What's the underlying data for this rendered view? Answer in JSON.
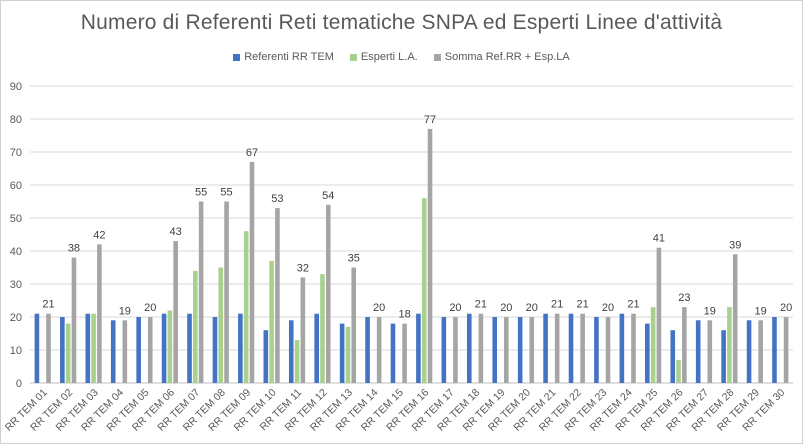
{
  "chart_data": {
    "type": "bar",
    "title": "Numero di Referenti Reti tematiche SNPA ed Esperti Linee d'attività",
    "xlabel": "",
    "ylabel": "",
    "ylim": [
      0,
      90
    ],
    "yticks": [
      "0",
      "10",
      "20",
      "30",
      "40",
      "50",
      "60",
      "70",
      "80",
      "90"
    ],
    "grid": true,
    "legend_position": "top",
    "categories": [
      "RR TEM 01",
      "RR TEM 02",
      "RR TEM 03",
      "RR TEM 04",
      "RR TEM 05",
      "RR TEM 06",
      "RR TEM 07",
      "RR TEM 08",
      "RR TEM 09",
      "RR TEM 10",
      "RR TEM 11",
      "RR TEM 12",
      "RR TEM 13",
      "RR TEM 14",
      "RR TEM 15",
      "RR TEM 16",
      "RR TEM 17",
      "RR TEM 18",
      "RR TEM 19",
      "RR TEM 20",
      "RR TEM 21",
      "RR TEM 22",
      "RR TEM 23",
      "RR TEM 24",
      "RR TEM 25",
      "RR TEM 26",
      "RR TEM 27",
      "RR TEM 28",
      "RR TEM 29",
      "RR TEM 30"
    ],
    "series": [
      {
        "name": "Referenti RR TEM",
        "color": "#4472C4",
        "values": [
          21,
          20,
          21,
          19,
          20,
          21,
          21,
          20,
          21,
          16,
          19,
          21,
          18,
          20,
          18,
          21,
          20,
          21,
          20,
          20,
          21,
          21,
          20,
          21,
          18,
          16,
          19,
          16,
          19,
          20
        ]
      },
      {
        "name": "Esperti L.A.",
        "color": "#A9D18E",
        "values": [
          0,
          18,
          21,
          0,
          0,
          22,
          34,
          35,
          46,
          37,
          13,
          33,
          17,
          0,
          0,
          56,
          0,
          0,
          0,
          0,
          0,
          0,
          0,
          0,
          23,
          7,
          0,
          23,
          0,
          0
        ]
      },
      {
        "name": "Somma Ref.RR + Esp.LA",
        "color": "#A5A5A5",
        "values": [
          21,
          38,
          42,
          19,
          20,
          43,
          55,
          55,
          67,
          53,
          32,
          54,
          35,
          20,
          18,
          77,
          20,
          21,
          20,
          20,
          21,
          21,
          20,
          21,
          41,
          23,
          19,
          39,
          19,
          20
        ]
      }
    ],
    "data_labels_series": "Somma Ref.RR + Esp.LA"
  }
}
